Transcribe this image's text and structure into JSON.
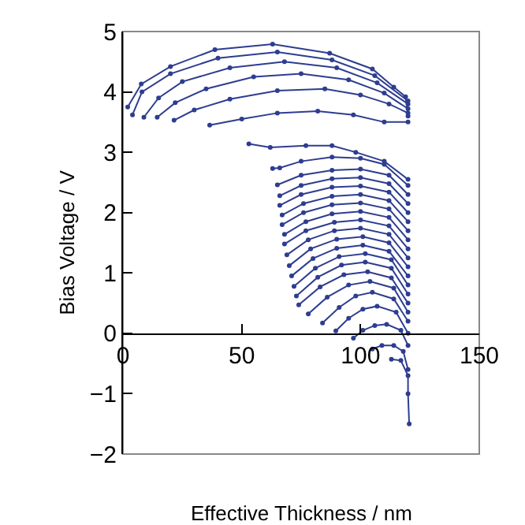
{
  "chart_data": {
    "type": "line",
    "xlabel": "Effective Thickness / nm",
    "ylabel": "Bias Voltage / V",
    "xlim": [
      0,
      150
    ],
    "xticks": [
      0,
      50,
      100,
      150
    ],
    "ylim": [
      -2,
      5
    ],
    "yticks": [
      -2,
      -1,
      0,
      1,
      2,
      3,
      4,
      5
    ],
    "grid": false,
    "marker": "circle",
    "line_style": "solid",
    "series": [
      {
        "color": "#2e3d8f",
        "x": [
          2,
          7.7,
          20,
          38.7,
          63,
          87,
          105,
          114,
          119,
          120
        ],
        "values": [
          3.75,
          4.13,
          4.42,
          4.7,
          4.79,
          4.64,
          4.38,
          4.08,
          3.92,
          3.6
        ]
      },
      {
        "color": "#2e3d8f",
        "x": [
          4,
          8,
          20,
          40,
          65,
          88,
          106,
          120
        ],
        "values": [
          3.62,
          4.0,
          4.3,
          4.56,
          4.66,
          4.53,
          4.27,
          3.85
        ]
      },
      {
        "color": "#2e3d8f",
        "x": [
          8.8,
          15,
          25,
          45,
          68,
          90,
          107,
          120
        ],
        "values": [
          3.58,
          3.9,
          4.17,
          4.4,
          4.5,
          4.4,
          4.15,
          3.8
        ]
      },
      {
        "color": "#2e3d8f",
        "x": [
          14.4,
          22,
          35,
          55,
          75,
          95,
          110,
          120
        ],
        "values": [
          3.58,
          3.82,
          4.05,
          4.25,
          4.3,
          4.2,
          3.98,
          3.72
        ]
      },
      {
        "color": "#2e3d8f",
        "x": [
          21.5,
          30,
          45,
          65,
          85,
          100,
          112,
          120
        ],
        "values": [
          3.53,
          3.7,
          3.88,
          4.02,
          4.05,
          3.95,
          3.8,
          3.65
        ]
      },
      {
        "color": "#2e3d8f",
        "x": [
          36.5,
          50,
          65,
          82,
          97,
          110,
          120
        ],
        "values": [
          3.45,
          3.55,
          3.65,
          3.68,
          3.62,
          3.5,
          3.5
        ]
      },
      {
        "color": "#2e3d8f",
        "x": [
          53,
          62,
          77,
          88,
          98,
          110,
          120
        ],
        "values": [
          3.14,
          3.08,
          3.11,
          3.11,
          3.0,
          2.85,
          2.55
        ]
      },
      {
        "color": "#2e3d8f",
        "x": [
          63,
          66,
          75,
          88,
          100,
          110,
          120
        ],
        "values": [
          2.73,
          2.74,
          2.85,
          2.92,
          2.9,
          2.8,
          2.45
        ]
      },
      {
        "color": "#2e3d8f",
        "x": [
          65,
          75,
          88,
          100,
          112,
          120
        ],
        "values": [
          2.46,
          2.62,
          2.7,
          2.72,
          2.62,
          2.3
        ]
      },
      {
        "color": "#2e3d8f",
        "x": [
          66,
          75,
          88,
          100,
          112,
          120
        ],
        "values": [
          2.28,
          2.45,
          2.56,
          2.58,
          2.48,
          2.15
        ]
      },
      {
        "color": "#2e3d8f",
        "x": [
          66,
          75,
          88,
          100,
          112,
          120
        ],
        "values": [
          2.12,
          2.3,
          2.42,
          2.44,
          2.34,
          2.0
        ]
      },
      {
        "color": "#2e3d8f",
        "x": [
          67,
          76,
          88,
          100,
          112,
          120
        ],
        "values": [
          1.96,
          2.15,
          2.27,
          2.3,
          2.2,
          1.85
        ]
      },
      {
        "color": "#2e3d8f",
        "x": [
          67,
          76,
          88,
          100,
          112,
          120
        ],
        "values": [
          1.8,
          2.0,
          2.13,
          2.16,
          2.06,
          1.7
        ]
      },
      {
        "color": "#2e3d8f",
        "x": [
          68,
          77,
          88,
          100,
          112,
          120
        ],
        "values": [
          1.64,
          1.85,
          1.98,
          2.02,
          1.92,
          1.55
        ]
      },
      {
        "color": "#2e3d8f",
        "x": [
          68,
          77,
          89,
          100,
          112,
          120
        ],
        "values": [
          1.48,
          1.7,
          1.84,
          1.88,
          1.78,
          1.4
        ]
      },
      {
        "color": "#2e3d8f",
        "x": [
          69,
          78,
          89,
          100,
          112,
          120
        ],
        "values": [
          1.3,
          1.55,
          1.7,
          1.74,
          1.64,
          1.25
        ]
      },
      {
        "color": "#2e3d8f",
        "x": [
          70,
          79,
          90,
          101,
          112,
          120
        ],
        "values": [
          1.12,
          1.4,
          1.56,
          1.6,
          1.5,
          1.1
        ]
      },
      {
        "color": "#2e3d8f",
        "x": [
          71,
          80,
          90,
          101,
          112,
          120
        ],
        "values": [
          0.95,
          1.24,
          1.41,
          1.46,
          1.36,
          0.95
        ]
      },
      {
        "color": "#2e3d8f",
        "x": [
          72,
          81,
          91,
          102,
          113,
          120
        ],
        "values": [
          0.78,
          1.08,
          1.27,
          1.32,
          1.22,
          0.8
        ]
      },
      {
        "color": "#2e3d8f",
        "x": [
          73,
          82,
          92,
          102,
          113,
          120
        ],
        "values": [
          0.62,
          0.93,
          1.13,
          1.18,
          1.08,
          0.65
        ]
      },
      {
        "color": "#2e3d8f",
        "x": [
          74,
          83,
          93,
          103,
          113,
          120
        ],
        "values": [
          0.47,
          0.77,
          0.97,
          1.02,
          0.92,
          0.5
        ]
      },
      {
        "color": "#2e3d8f",
        "x": [
          78,
          86,
          95,
          104,
          114,
          120
        ],
        "values": [
          0.32,
          0.6,
          0.8,
          0.86,
          0.75,
          0.35
        ]
      },
      {
        "color": "#2e3d8f",
        "x": [
          84,
          91,
          98,
          105,
          114,
          120
        ],
        "values": [
          0.17,
          0.43,
          0.62,
          0.68,
          0.57,
          0.2
        ]
      },
      {
        "color": "#2e3d8f",
        "x": [
          89.6,
          95,
          101,
          107,
          115,
          120
        ],
        "values": [
          0.04,
          0.25,
          0.4,
          0.45,
          0.35,
          0.0
        ]
      },
      {
        "color": "#2e3d8f",
        "x": [
          97,
          101,
          106,
          111,
          117,
          120
        ],
        "values": [
          -0.08,
          0.05,
          0.13,
          0.15,
          0.05,
          -0.2
        ]
      },
      {
        "color": "#2e3d8f",
        "x": [
          105,
          109,
          114,
          118,
          120
        ],
        "values": [
          -0.26,
          -0.2,
          -0.2,
          -0.3,
          -0.6
        ]
      },
      {
        "color": "#2e3d8f",
        "x": [
          113,
          117,
          120,
          120,
          120.5
        ],
        "values": [
          -0.43,
          -0.45,
          -0.7,
          -1.0,
          -1.5
        ]
      }
    ]
  }
}
